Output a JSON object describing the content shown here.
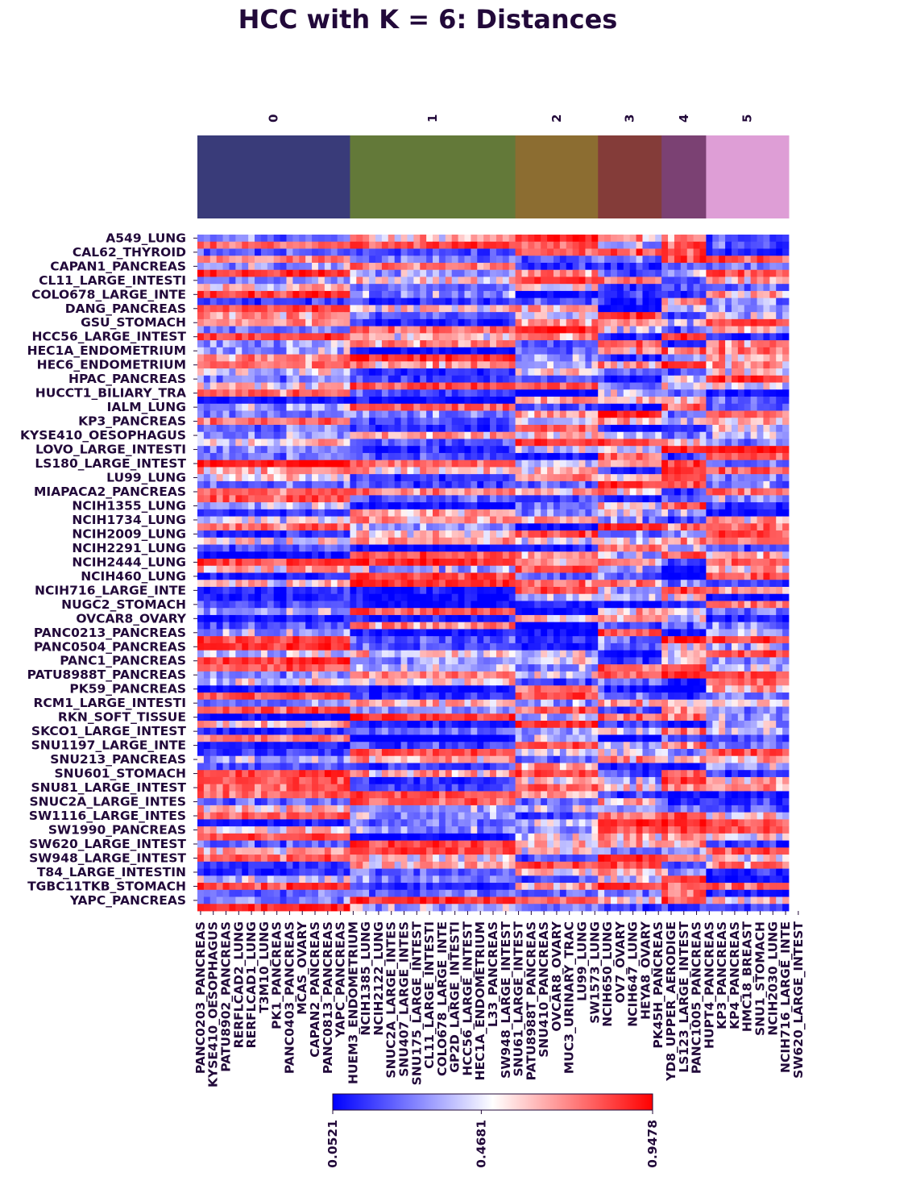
{
  "chart_data": {
    "type": "heatmap",
    "title": "HCC with K = 6: Distances",
    "cluster_labels": [
      "0",
      "1",
      "2",
      "3",
      "4",
      "5"
    ],
    "cluster_colors": [
      "#393b79",
      "#637939",
      "#8c6d31",
      "#843c39",
      "#7b4173",
      "#de9ed6"
    ],
    "cluster_column_counts": [
      24,
      26,
      13,
      10,
      7,
      13
    ],
    "row_labels": [
      "A549_LUNG",
      "CAL62_THYROID",
      "CAPAN1_PANCREAS",
      "CL11_LARGE_INTESTI",
      "COLO678_LARGE_INTE",
      "DANG_PANCREAS",
      "GSU_STOMACH",
      "HCC56_LARGE_INTEST",
      "HEC1A_ENDOMETRIUM",
      "HEC6_ENDOMETRIUM",
      "HPAC_PANCREAS",
      "HUCCT1_BILIARY_TRA",
      "IALM_LUNG",
      "KP3_PANCREAS",
      "KYSE410_OESOPHAGUS",
      "LOVO_LARGE_INTESTI",
      "LS180_LARGE_INTEST",
      "LU99_LUNG",
      "MIAPACA2_PANCREAS",
      "NCIH1355_LUNG",
      "NCIH1734_LUNG",
      "NCIH2009_LUNG",
      "NCIH2291_LUNG",
      "NCIH2444_LUNG",
      "NCIH460_LUNG",
      "NCIH716_LARGE_INTE",
      "NUGC2_STOMACH",
      "OVCAR8_OVARY",
      "PANC0213_PANCREAS",
      "PANC0504_PANCREAS",
      "PANC1_PANCREAS",
      "PATU8988T_PANCREAS",
      "PK59_PANCREAS",
      "RCM1_LARGE_INTESTI",
      "RKN_SOFT_TISSUE",
      "SKCO1_LARGE_INTEST",
      "SNU1197_LARGE_INTE",
      "SNU213_PANCREAS",
      "SNU601_STOMACH",
      "SNU81_LARGE_INTEST",
      "SNUC2A_LARGE_INTES",
      "SW1116_LARGE_INTES",
      "SW1990_PANCREAS",
      "SW620_LARGE_INTEST",
      "SW948_LARGE_INTEST",
      "T84_LARGE_INTESTIN",
      "TGBC11TKB_STOMACH",
      "YAPC_PANCREAS"
    ],
    "col_labels": [
      "PANC0203_PANCREAS",
      "KYSE410_OESOPHAGUS",
      "PATU8902_PANCREAS",
      "RERFLCAD2_LUNG",
      "RERFLCAD1_LUNG",
      "T3M10_LUNG",
      "PK1_PANCREAS",
      "PANC0403_PANCREAS",
      "MCAS_OVARY",
      "CAPAN2_PANCREAS",
      "PANC0813_PANCREAS",
      "YAPC_PANCREAS",
      "HUEM3_ENDOMETRIUM",
      "NCIH1385_LUNG",
      "NCIH2122_LUNG",
      "SNUC2A_LARGE_INTES",
      "SNU407_LARGE_INTES",
      "SNU175_LARGE_INTEST",
      "CL11_LARGE_INTESTI",
      "COLO678_LARGE_INTE",
      "GP2D_LARGE_INTESTI",
      "HCC56_LARGE_INTEST",
      "HEC1A_ENDOMETRIUM",
      "L33_PANCREAS",
      "SW948_LARGE_INTEST",
      "SNU61_LARGE_INTEST",
      "PATU8988T_PANCREAS",
      "SNU410_PANCREAS",
      "OVCAR8_OVARY",
      "MUC3_URINARY_TRAC",
      "LU99_LUNG",
      "SW1573_LUNG",
      "NCIH650_LUNG",
      "OV7_OVARY",
      "NCIH647_LUNG",
      "HEYA8_OVARY",
      "PK45H_PANCREAS",
      "YD8_UPPER_AERODIGE",
      "LS123_LARGE_INTEST",
      "PANC1005_PANCREAS",
      "HUPT4_PANCREAS",
      "KP3_PANCREAS",
      "KP4_PANCREAS",
      "HMC18_BREAST",
      "SNU1_STOMACH",
      "NCIH2030_LUNG",
      "NCIH716_LARGE_INTE",
      "SW620_LARGE_INTEST"
    ],
    "vmin": 0.0521,
    "vmax": 0.9478,
    "colorbar_ticks": [
      "0.0521",
      "0.4681",
      "0.9478"
    ],
    "colormap": [
      "#0000ff",
      "#ffffff",
      "#ff0000"
    ]
  }
}
